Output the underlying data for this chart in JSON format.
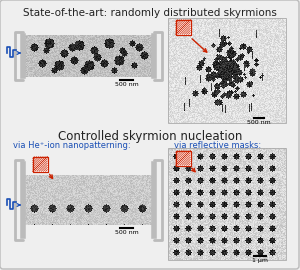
{
  "bg_color": "#efefef",
  "border_color": "#bbbbbb",
  "title1": "State-of-the-art: randomly distributed skyrmions",
  "title2": "Controlled skyrmion nucleation",
  "subtitle_left": "via He⁺-ion nanopatterning:",
  "subtitle_right": "via reflective masks:",
  "scale1": "500 nm",
  "scale2": "500 nm",
  "scale3": "500 nm",
  "scale4": "1 μm",
  "bracket_color": "#bbbbbb",
  "blue_color": "#1a4fb5",
  "red_color": "#cc2200",
  "text_color": "#222222",
  "gray_light": "#e0e0e0",
  "gray_mid": "#c8c8c8"
}
